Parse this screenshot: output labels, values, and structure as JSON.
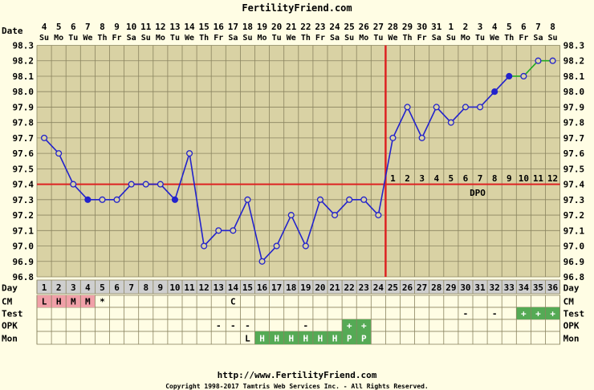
{
  "header": {
    "title": "FertilityFriend.com"
  },
  "footer": {
    "url": "http://www.FertilityFriend.com",
    "copyright": "Copyright 1998-2017 Tamtris Web Services Inc. - All Rights Reserved."
  },
  "labels": {
    "date": "Date",
    "day": "Day",
    "cm": "CM",
    "test": "Test",
    "opk": "OPK",
    "mon": "Mon",
    "dpo": "DPO"
  },
  "colors": {
    "background": "#fffde4",
    "plot": "#d9d2a4",
    "grid": "#8a8460",
    "line": "#2222cc",
    "post_line": "#22aa22",
    "coverline": "#dd2222",
    "cm_highlight": "#f0a0a8",
    "green_box": "#55aa55"
  },
  "chart_data": {
    "type": "line",
    "ylim": [
      96.8,
      98.3
    ],
    "yticks": [
      "96.8",
      "96.9",
      "97.0",
      "97.1",
      "97.2",
      "97.3",
      "97.4",
      "97.5",
      "97.6",
      "97.7",
      "97.8",
      "97.9",
      "98.0",
      "98.1",
      "98.2",
      "98.3"
    ],
    "dates": [
      "4",
      "5",
      "6",
      "7",
      "8",
      "9",
      "10",
      "11",
      "12",
      "13",
      "14",
      "15",
      "16",
      "17",
      "18",
      "19",
      "20",
      "21",
      "22",
      "23",
      "24",
      "25",
      "26",
      "27",
      "28",
      "29",
      "30",
      "31",
      "1",
      "2",
      "3",
      "4",
      "5",
      "6",
      "7",
      "8"
    ],
    "weekdays": [
      "Su",
      "Mo",
      "Tu",
      "We",
      "Th",
      "Fr",
      "Sa",
      "Su",
      "Mo",
      "Tu",
      "We",
      "Th",
      "Fr",
      "Sa",
      "Su",
      "Mo",
      "Tu",
      "We",
      "Th",
      "Fr",
      "Sa",
      "Su",
      "Mo",
      "Tu",
      "We",
      "Th",
      "Fr",
      "Sa",
      "Su",
      "Mo",
      "Tu",
      "We",
      "Th",
      "Fr",
      "Sa",
      "Su"
    ],
    "days": [
      "1",
      "2",
      "3",
      "4",
      "5",
      "6",
      "7",
      "8",
      "9",
      "10",
      "11",
      "12",
      "13",
      "14",
      "15",
      "16",
      "17",
      "18",
      "19",
      "20",
      "21",
      "22",
      "23",
      "24",
      "25",
      "26",
      "27",
      "28",
      "29",
      "30",
      "31",
      "32",
      "33",
      "34",
      "35",
      "36"
    ],
    "temps": [
      97.7,
      97.6,
      97.4,
      97.3,
      97.3,
      97.3,
      97.4,
      97.4,
      97.4,
      97.3,
      97.6,
      97.0,
      97.1,
      97.1,
      97.3,
      96.9,
      97.0,
      97.2,
      97.0,
      97.3,
      97.2,
      97.3,
      97.3,
      97.2,
      97.7,
      97.9,
      97.7,
      97.9,
      97.8,
      97.9,
      97.9,
      98.0,
      98.1,
      98.1,
      98.2,
      98.2
    ],
    "filled": [
      4,
      10,
      32,
      33
    ],
    "blue_connected_until": 33,
    "coverline": 97.4,
    "ovulation_day": 24,
    "dpo": [
      "1",
      "2",
      "3",
      "4",
      "5",
      "6",
      "7",
      "8",
      "9",
      "10",
      "11",
      "12"
    ],
    "cm": [
      {
        "day": 1,
        "v": "L"
      },
      {
        "day": 2,
        "v": "H"
      },
      {
        "day": 3,
        "v": "M"
      },
      {
        "day": 4,
        "v": "M"
      },
      {
        "day": 5,
        "v": "*"
      },
      {
        "day": 14,
        "v": "C"
      }
    ],
    "test": [
      {
        "day": 30,
        "v": "-"
      },
      {
        "day": 32,
        "v": "-"
      },
      {
        "day": 34,
        "v": "+"
      },
      {
        "day": 35,
        "v": "+"
      },
      {
        "day": 36,
        "v": "+"
      }
    ],
    "opk": [
      {
        "day": 13,
        "v": "-"
      },
      {
        "day": 14,
        "v": "-"
      },
      {
        "day": 15,
        "v": "-"
      },
      {
        "day": 19,
        "v": "-"
      },
      {
        "day": 22,
        "v": "+"
      },
      {
        "day": 23,
        "v": "+"
      }
    ],
    "mon": [
      {
        "day": 15,
        "v": "L"
      },
      {
        "day": 16,
        "v": "H"
      },
      {
        "day": 17,
        "v": "H"
      },
      {
        "day": 18,
        "v": "H"
      },
      {
        "day": 19,
        "v": "H"
      },
      {
        "day": 20,
        "v": "H"
      },
      {
        "day": 21,
        "v": "H"
      },
      {
        "day": 22,
        "v": "P"
      },
      {
        "day": 23,
        "v": "P"
      }
    ]
  }
}
